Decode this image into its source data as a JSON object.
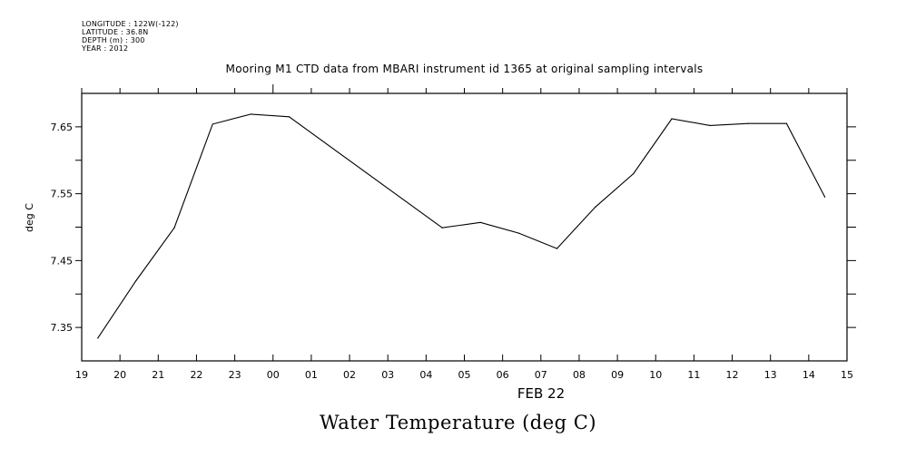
{
  "meta": {
    "longitude": "LONGITUDE : 122W(-122)",
    "latitude": "LATITUDE : 36.8N",
    "depth": "DEPTH (m) : 300",
    "year": "YEAR : 2012"
  },
  "chart_data": {
    "type": "line",
    "title": "Water Temperature (deg C)",
    "subtitle": "Mooring M1 CTD data from MBARI instrument id 1365 at original sampling intervals",
    "xlabel": "FEB 22",
    "ylabel": "deg C",
    "x_units": "hours since 19:00 (FEB 21-22)",
    "xlim": [
      0,
      20
    ],
    "ylim": [
      7.3,
      7.7
    ],
    "x_tick_labels": [
      "19",
      "20",
      "21",
      "22",
      "23",
      "00",
      "01",
      "02",
      "03",
      "04",
      "05",
      "06",
      "07",
      "08",
      "09",
      "10",
      "11",
      "12",
      "13",
      "14",
      "15"
    ],
    "y_ticks": [
      7.35,
      7.45,
      7.55,
      7.65
    ],
    "y_tick_labels": [
      "7.35",
      "7.45",
      "7.55",
      "7.65"
    ],
    "y_minor_ticks": [
      7.4,
      7.5,
      7.6
    ],
    "grid": false,
    "series": [
      {
        "name": "Water Temperature",
        "color": "#000000",
        "x": [
          0.42,
          1.42,
          2.42,
          3.42,
          4.42,
          5.42,
          9.42,
          10.42,
          11.42,
          12.42,
          13.42,
          14.42,
          15.42,
          16.42,
          17.42,
          18.42,
          19.42
        ],
        "y": [
          7.334,
          7.42,
          7.499,
          7.654,
          7.669,
          7.665,
          7.499,
          7.507,
          7.491,
          7.468,
          7.53,
          7.58,
          7.662,
          7.652,
          7.655,
          7.655,
          7.545
        ]
      }
    ]
  }
}
